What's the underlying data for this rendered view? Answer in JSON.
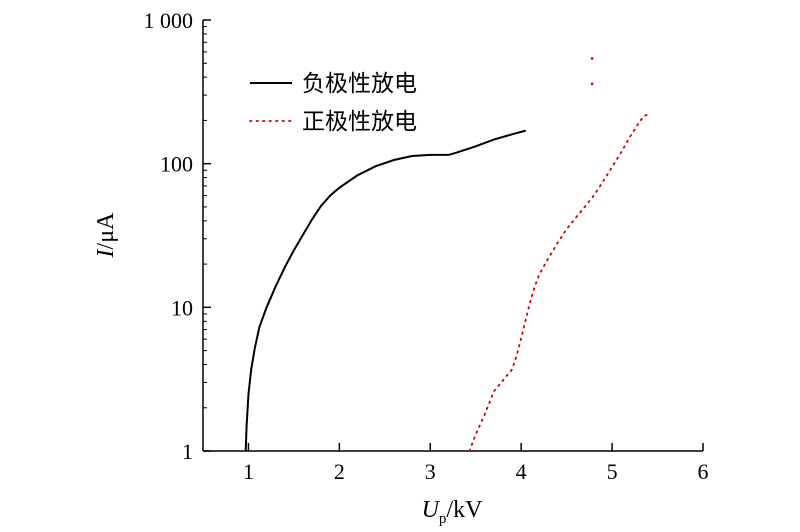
{
  "chart_data": {
    "type": "line",
    "xlim": [
      0.5,
      6
    ],
    "ylim": [
      1,
      1000
    ],
    "y_scale": "log",
    "grid": false,
    "legend_position": "top-left",
    "x_ticks": [
      {
        "value": 1,
        "label": "1"
      },
      {
        "value": 2,
        "label": "2"
      },
      {
        "value": 3,
        "label": "3"
      },
      {
        "value": 4,
        "label": "4"
      },
      {
        "value": 5,
        "label": "5"
      },
      {
        "value": 6,
        "label": "6"
      }
    ],
    "y_ticks": [
      {
        "value": 1,
        "label": "1"
      },
      {
        "value": 10,
        "label": "10"
      },
      {
        "value": 100,
        "label": "100"
      },
      {
        "value": 1000,
        "label": "1 000"
      }
    ],
    "xlabel": {
      "main": "U",
      "sub": "p",
      "rest": "/kV"
    },
    "ylabel": {
      "main": "I",
      "rest": "/μA"
    },
    "series": [
      {
        "name": "负极性放电",
        "style": "solid",
        "color": "#000000",
        "x": [
          0.97,
          0.98,
          1.0,
          1.03,
          1.07,
          1.12,
          1.2,
          1.3,
          1.4,
          1.5,
          1.6,
          1.7,
          1.8,
          1.9,
          2.0,
          2.2,
          2.4,
          2.6,
          2.8,
          3.0,
          3.2,
          3.3,
          3.5,
          3.7,
          3.9,
          4.05
        ],
        "y": [
          1.0,
          1.5,
          2.5,
          3.7,
          5.2,
          7.3,
          10,
          14,
          19,
          25,
          32,
          41,
          51,
          60,
          68,
          83,
          96,
          106,
          113,
          115,
          115,
          120,
          132,
          147,
          160,
          170
        ]
      },
      {
        "name": "正极性放电",
        "style": "dotted",
        "color": "#cc0000",
        "x": [
          3.43,
          3.5,
          3.6,
          3.7,
          3.8,
          3.9,
          3.95,
          4.0,
          4.05,
          4.1,
          4.15,
          4.2,
          4.3,
          4.4,
          4.5,
          4.6,
          4.7,
          4.8,
          4.9,
          5.0,
          5.1,
          5.2,
          5.3,
          5.35,
          5.4
        ],
        "y": [
          1.0,
          1.3,
          1.8,
          2.6,
          3.1,
          3.7,
          4.6,
          6.1,
          8.2,
          11,
          14,
          17,
          22,
          28,
          35,
          42,
          50,
          60,
          75,
          95,
          120,
          155,
          195,
          215,
          220
        ]
      }
    ],
    "outliers": {
      "color": "#cc0000",
      "x": [
        4.78,
        4.78
      ],
      "y": [
        540,
        360
      ]
    }
  }
}
